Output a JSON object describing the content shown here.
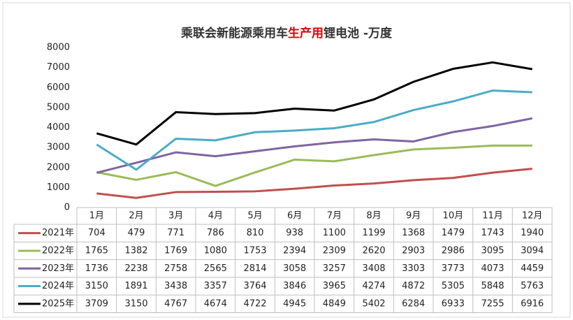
{
  "chart_data": {
    "type": "line",
    "title": [
      {
        "text": "乘联会新能源乘用车",
        "color": "#333333"
      },
      {
        "text": "生产用",
        "color": "#e00000"
      },
      {
        "text": "锂电池 -万度",
        "color": "#333333"
      }
    ],
    "categories": [
      "1月",
      "2月",
      "3月",
      "4月",
      "5月",
      "6月",
      "7月",
      "8月",
      "9月",
      "10月",
      "11月",
      "12月"
    ],
    "series": [
      {
        "name": "2021年",
        "color": "#c0504d",
        "values": [
          704,
          479,
          771,
          786,
          810,
          938,
          1100,
          1199,
          1368,
          1479,
          1743,
          1940
        ]
      },
      {
        "name": "2022年",
        "color": "#9bbb59",
        "values": [
          1765,
          1382,
          1769,
          1080,
          1753,
          2394,
          2309,
          2620,
          2903,
          2986,
          3095,
          3094
        ]
      },
      {
        "name": "2023年",
        "color": "#8064a2",
        "values": [
          1736,
          2238,
          2758,
          2565,
          2814,
          3058,
          3257,
          3408,
          3303,
          3773,
          4073,
          4459
        ]
      },
      {
        "name": "2024年",
        "color": "#4bacc6",
        "values": [
          3150,
          1891,
          3438,
          3357,
          3764,
          3846,
          3965,
          4274,
          4872,
          5305,
          5848,
          5763
        ]
      },
      {
        "name": "2025年",
        "color": "#000000",
        "values": [
          3709,
          3150,
          4767,
          4674,
          4722,
          4945,
          4849,
          5402,
          6284,
          6933,
          7255,
          6916
        ]
      }
    ],
    "ylim": [
      0,
      8000
    ],
    "yticks": [
      0,
      1000,
      2000,
      3000,
      4000,
      5000,
      6000,
      7000,
      8000
    ],
    "grid": false
  }
}
